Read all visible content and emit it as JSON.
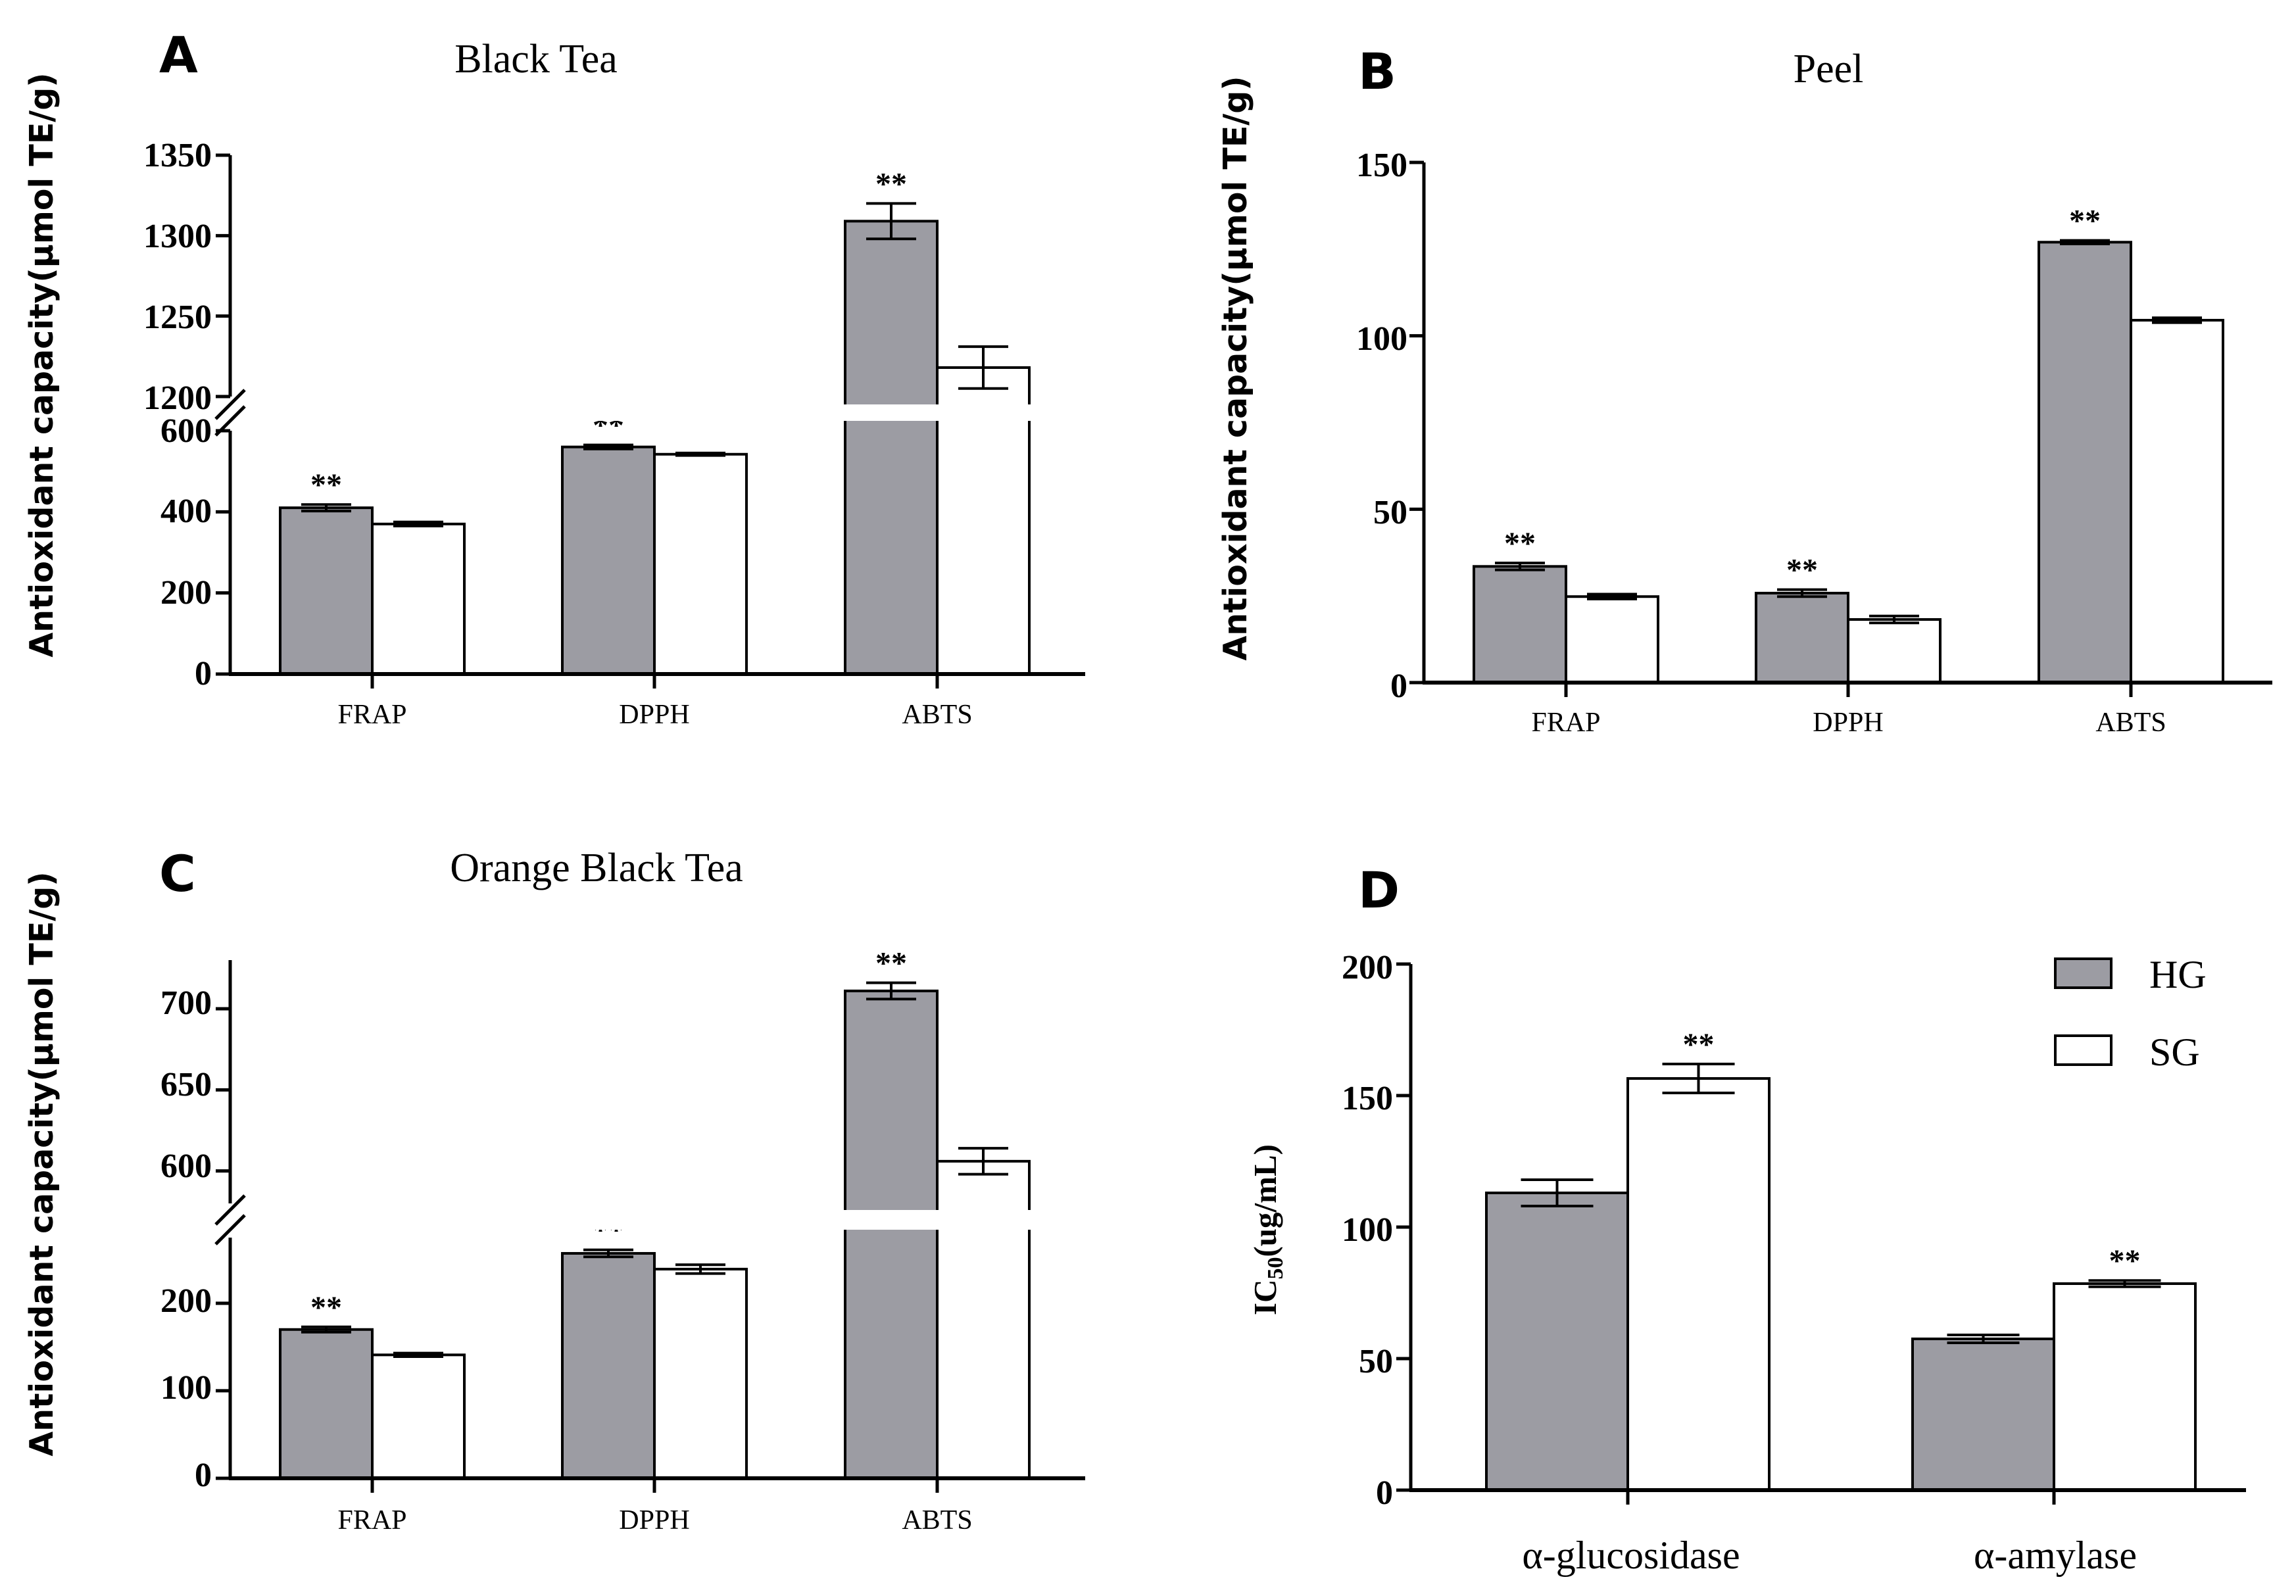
{
  "colors": {
    "hg": "#9c9ca3",
    "sg": "#ffffff",
    "stroke": "#000000"
  },
  "legend": {
    "hg": "HG",
    "sg": "SG"
  },
  "chart_data": [
    {
      "panel": "A",
      "type": "bar",
      "title": "Black Tea",
      "ylabel": "Antioxidant capacity(μmol TE/g)",
      "categories": [
        "FRAP",
        "DPPH",
        "ABTS"
      ],
      "axis_break": {
        "lower": [
          0,
          600
        ],
        "upper": [
          1200,
          1350
        ]
      },
      "yticks_lower": [
        "0",
        "200",
        "400",
        "600"
      ],
      "yticks_upper": [
        "1200",
        "1250",
        "1300",
        "1350"
      ],
      "series": [
        {
          "name": "HG",
          "values": [
            410,
            560,
            1309
          ],
          "errors": [
            8,
            5,
            11
          ]
        },
        {
          "name": "SG",
          "values": [
            370,
            542,
            1218
          ],
          "errors": [
            5,
            3,
            13
          ]
        }
      ],
      "annotations": [
        {
          "series": "HG",
          "category": "FRAP",
          "text": "**"
        },
        {
          "series": "HG",
          "category": "DPPH",
          "text": "**"
        },
        {
          "series": "HG",
          "category": "ABTS",
          "text": "**"
        }
      ]
    },
    {
      "panel": "B",
      "type": "bar",
      "title": "Peel",
      "ylabel": "Antioxidant capacity(μmol TE/g)",
      "categories": [
        "FRAP",
        "DPPH",
        "ABTS"
      ],
      "ylim": [
        0,
        150
      ],
      "yticks": [
        "0",
        "50",
        "100",
        "150"
      ],
      "series": [
        {
          "name": "HG",
          "values": [
            33.5,
            25.8,
            127
          ],
          "errors": [
            1,
            1,
            0.5
          ]
        },
        {
          "name": "SG",
          "values": [
            24.8,
            18.2,
            104.5
          ],
          "errors": [
            0.7,
            1,
            0.7
          ]
        }
      ],
      "annotations": [
        {
          "series": "HG",
          "category": "FRAP",
          "text": "**"
        },
        {
          "series": "HG",
          "category": "DPPH",
          "text": "**"
        },
        {
          "series": "HG",
          "category": "ABTS",
          "text": "**"
        }
      ]
    },
    {
      "panel": "C",
      "type": "bar",
      "title": "Orange Black Tea",
      "ylabel": "Antioxidant capacity(μmol TE/g)",
      "categories": [
        "FRAP",
        "DPPH",
        "ABTS"
      ],
      "axis_break": {
        "lower": [
          0,
          275
        ],
        "upper": [
          580,
          730
        ]
      },
      "yticks_lower": [
        "0",
        "100",
        "200"
      ],
      "yticks_upper": [
        "600",
        "650",
        "700"
      ],
      "series": [
        {
          "name": "HG",
          "values": [
            170,
            257,
            711
          ],
          "errors": [
            3,
            4,
            5
          ]
        },
        {
          "name": "SG",
          "values": [
            141,
            239,
            606
          ],
          "errors": [
            2,
            5,
            8
          ]
        }
      ],
      "annotations": [
        {
          "series": "HG",
          "category": "FRAP",
          "text": "**"
        },
        {
          "series": "HG",
          "category": "DPPH",
          "text": "**"
        },
        {
          "series": "HG",
          "category": "ABTS",
          "text": "**"
        }
      ]
    },
    {
      "panel": "D",
      "type": "bar",
      "title": "",
      "ylabel": "IC",
      "ylabel_sub": "50",
      "ylabel_rest": "(ug/mL)",
      "categories": [
        "α-glucosidase",
        "α-amylase"
      ],
      "ylim": [
        0,
        200
      ],
      "yticks": [
        "0",
        "50",
        "100",
        "150",
        "200"
      ],
      "series": [
        {
          "name": "HG",
          "values": [
            113,
            57.5
          ],
          "errors": [
            5,
            1.5
          ]
        },
        {
          "name": "SG",
          "values": [
            156.5,
            78.5
          ],
          "errors": [
            5.5,
            1.2
          ]
        }
      ],
      "annotations": [
        {
          "series": "SG",
          "category": "α-glucosidase",
          "text": "**"
        },
        {
          "series": "SG",
          "category": "α-amylase",
          "text": "**"
        }
      ]
    }
  ]
}
